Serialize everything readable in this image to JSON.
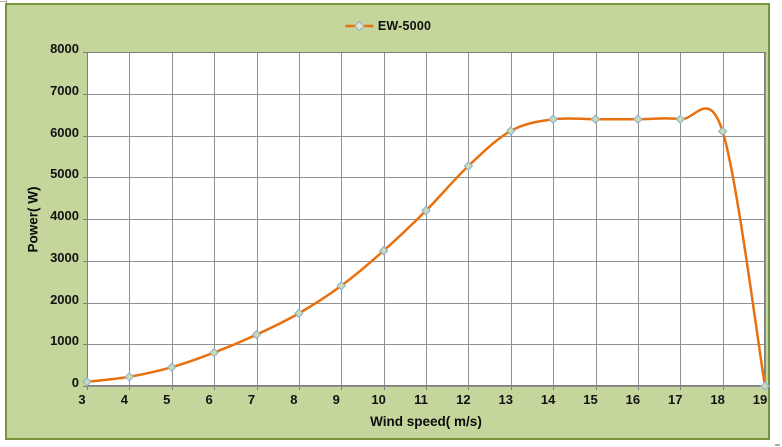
{
  "chart": {
    "background_color": "#c4d69b",
    "border_color": "#77933c",
    "plot_background_color": "#ffffff",
    "gridline_color": "#909090",
    "axis_line_color": "#7f7f7f",
    "tick_color": "#7f7f7f"
  },
  "legend": {
    "label": "EW-5000",
    "marker": "diamond-on-line"
  },
  "chart_data": {
    "type": "line",
    "smooth": true,
    "grid": "both",
    "legend_position": "top-center",
    "xlabel": "Wind speed( m/s)",
    "ylabel": "Power( W)",
    "xlim": [
      3,
      19
    ],
    "ylim": [
      0,
      8000
    ],
    "x_ticks": [
      3,
      4,
      5,
      6,
      7,
      8,
      9,
      10,
      11,
      12,
      13,
      14,
      15,
      16,
      17,
      18,
      19
    ],
    "y_ticks": [
      0,
      1000,
      2000,
      3000,
      4000,
      5000,
      6000,
      7000,
      8000
    ],
    "series": [
      {
        "name": "EW-5000",
        "line_color": "#e8700e",
        "line_width": 2.5,
        "marker": "diamond",
        "marker_fill": "#cddcaf",
        "marker_stroke": "#96b4d2",
        "x": [
          3,
          4,
          5,
          6,
          7,
          8,
          9,
          10,
          11,
          12,
          13,
          14,
          15,
          16,
          17,
          18,
          19
        ],
        "values": [
          100,
          220,
          450,
          800,
          1230,
          1740,
          2400,
          3240,
          4200,
          5270,
          6110,
          6390,
          6390,
          6390,
          6390,
          6100,
          0
        ]
      }
    ]
  }
}
